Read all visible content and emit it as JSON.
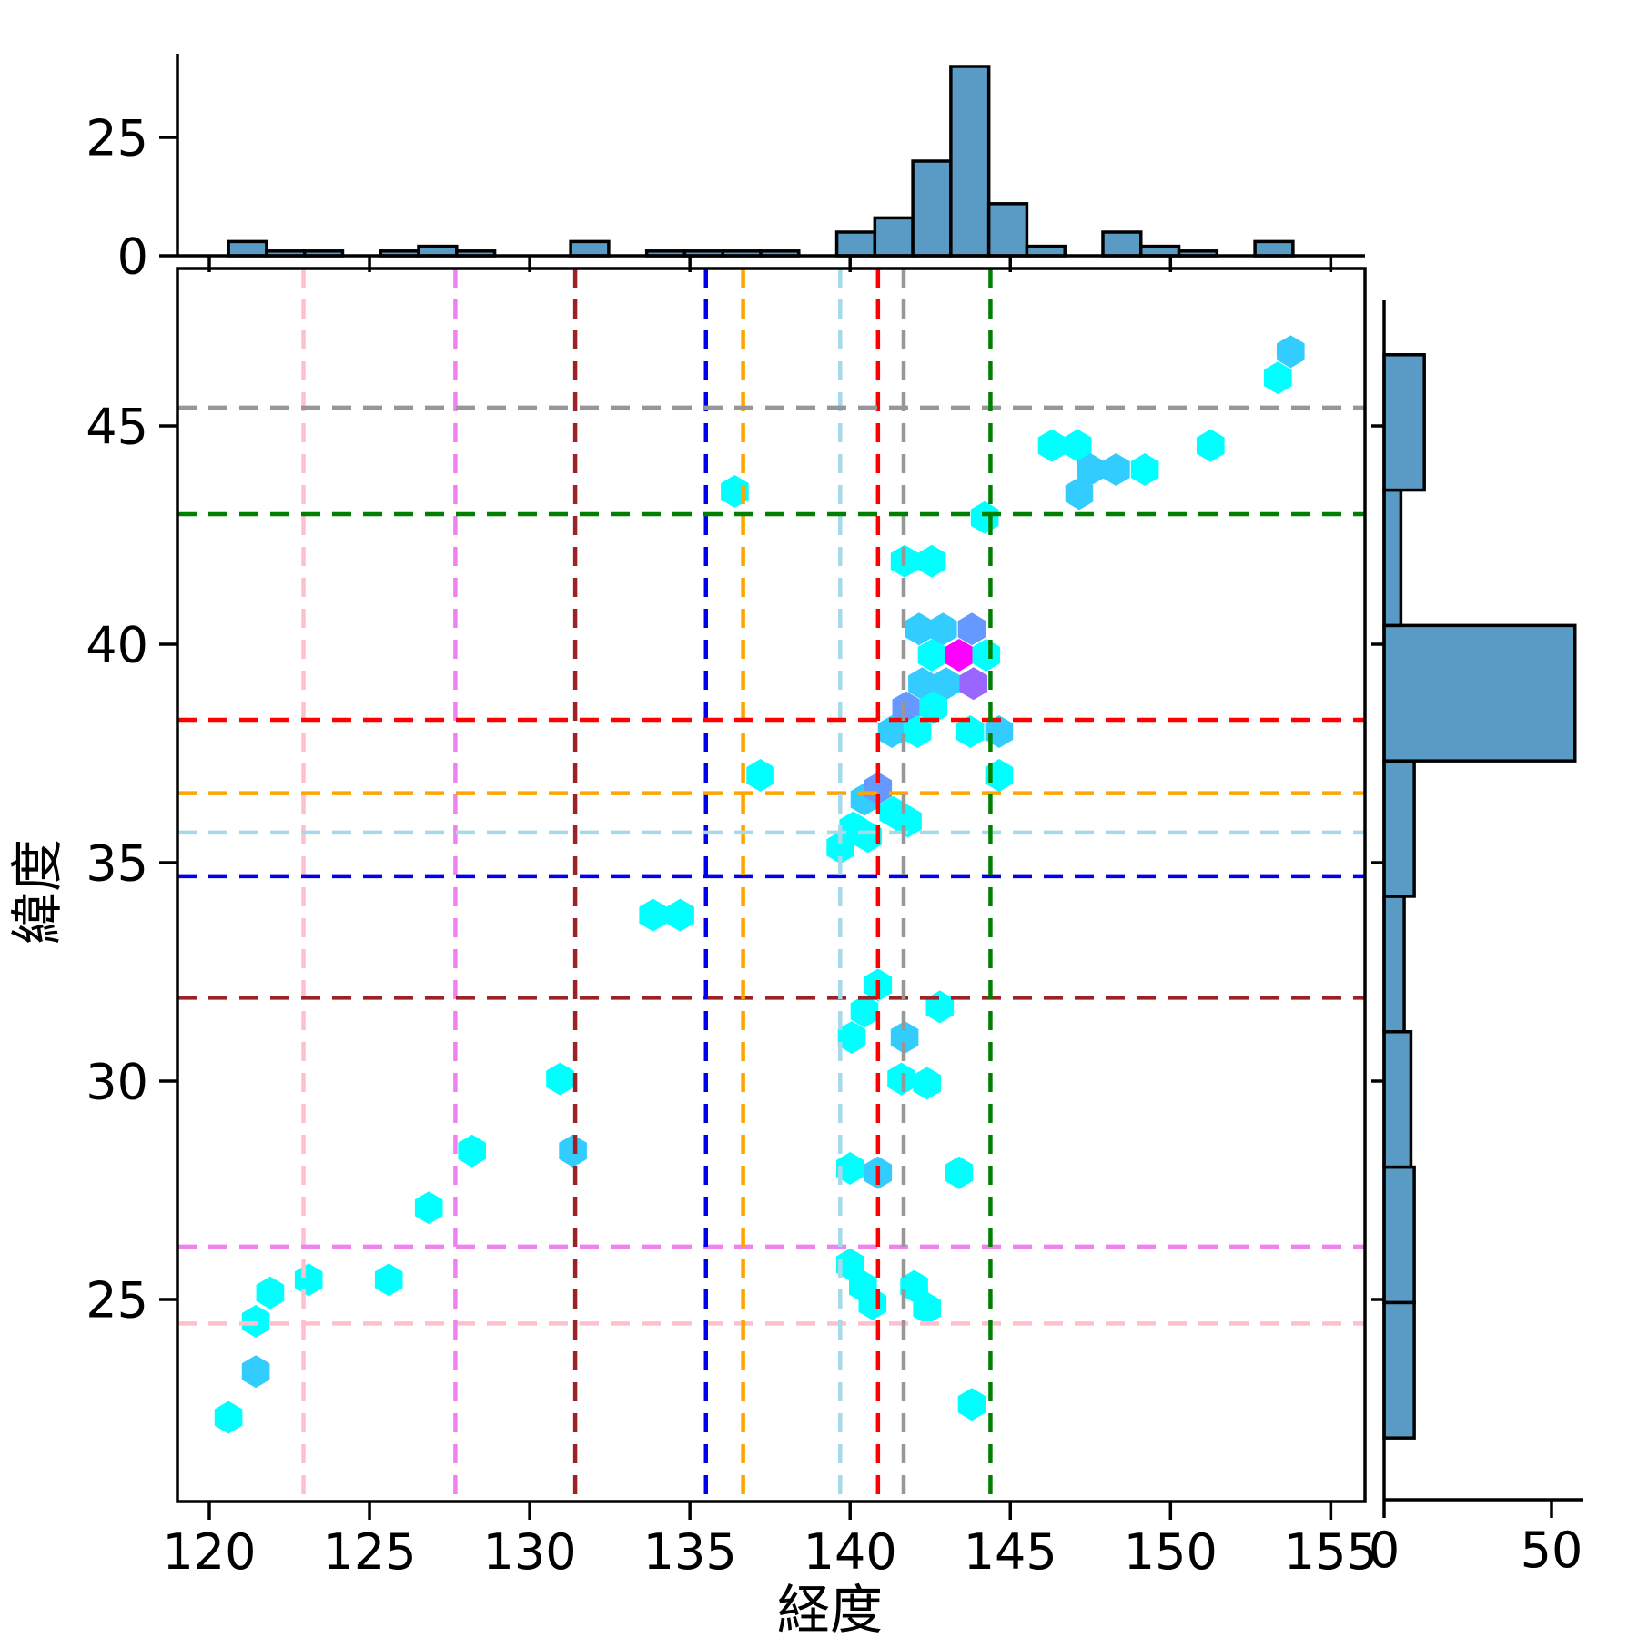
{
  "chart_data": {
    "type": "hexbin",
    "description": "Joint plot: hexbin scatter of longitude vs latitude with marginal histograms and dashed crosshair reference lines",
    "xlabel": "経度",
    "ylabel": "緯度",
    "main": {
      "xlim": [
        119.0,
        156.07
      ],
      "ylim": [
        20.4,
        48.6
      ],
      "xticks": [
        120,
        125,
        130,
        135,
        140,
        145,
        150,
        155
      ],
      "yticks": [
        25,
        30,
        35,
        40,
        45
      ],
      "grid": false,
      "hex_level_colors": {
        "1": "#00ffff",
        "2": "#33ccff",
        "3": "#6699ff",
        "4": "#9966ff",
        "5": "#cc33ff",
        "6": "#ff00ff"
      },
      "hexagons": [
        [
          120.6,
          22.3,
          1
        ],
        [
          121.45,
          23.35,
          2
        ],
        [
          121.45,
          24.5,
          1
        ],
        [
          121.9,
          25.15,
          1
        ],
        [
          123.1,
          25.45,
          1
        ],
        [
          125.6,
          25.45,
          1
        ],
        [
          126.85,
          27.1,
          1
        ],
        [
          128.2,
          28.4,
          1
        ],
        [
          131.35,
          28.4,
          2
        ],
        [
          130.95,
          30.05,
          1
        ],
        [
          133.85,
          33.8,
          1
        ],
        [
          134.7,
          33.8,
          1
        ],
        [
          136.4,
          43.5,
          1
        ],
        [
          137.2,
          37.0,
          1
        ],
        [
          139.7,
          35.35,
          1
        ],
        [
          140.1,
          35.8,
          1
        ],
        [
          140.55,
          35.6,
          1
        ],
        [
          140.45,
          36.45,
          2
        ],
        [
          140.87,
          36.7,
          3
        ],
        [
          141.35,
          36.15,
          1
        ],
        [
          141.8,
          35.95,
          1
        ],
        [
          140.87,
          32.2,
          1
        ],
        [
          140.45,
          31.6,
          1
        ],
        [
          140.05,
          31.0,
          1
        ],
        [
          141.7,
          31.0,
          2
        ],
        [
          142.8,
          31.7,
          1
        ],
        [
          141.6,
          30.05,
          1
        ],
        [
          142.4,
          29.95,
          1
        ],
        [
          140.0,
          28.0,
          1
        ],
        [
          140.87,
          27.9,
          2
        ],
        [
          143.4,
          27.9,
          1
        ],
        [
          140.0,
          25.8,
          1
        ],
        [
          140.4,
          25.3,
          1
        ],
        [
          140.7,
          24.9,
          1
        ],
        [
          142.0,
          25.3,
          1
        ],
        [
          142.4,
          24.8,
          1
        ],
        [
          143.8,
          22.6,
          1
        ],
        [
          142.15,
          40.35,
          2
        ],
        [
          142.9,
          40.35,
          2
        ],
        [
          143.8,
          40.35,
          3
        ],
        [
          142.55,
          39.75,
          1
        ],
        [
          143.4,
          39.75,
          6
        ],
        [
          144.25,
          39.75,
          1
        ],
        [
          142.25,
          39.1,
          2
        ],
        [
          143.0,
          39.1,
          2
        ],
        [
          143.85,
          39.1,
          4
        ],
        [
          141.75,
          38.55,
          3
        ],
        [
          142.6,
          38.55,
          1
        ],
        [
          141.3,
          38.0,
          2
        ],
        [
          142.1,
          38.0,
          1
        ],
        [
          143.75,
          38.0,
          1
        ],
        [
          144.65,
          38.0,
          2
        ],
        [
          144.65,
          37.0,
          1
        ],
        [
          141.7,
          41.9,
          1
        ],
        [
          142.55,
          41.9,
          1
        ],
        [
          144.2,
          42.9,
          1
        ],
        [
          146.3,
          44.55,
          1
        ],
        [
          147.1,
          44.55,
          1
        ],
        [
          151.25,
          44.55,
          1
        ],
        [
          147.5,
          44.0,
          2
        ],
        [
          148.3,
          44.0,
          2
        ],
        [
          149.2,
          44.0,
          1
        ],
        [
          147.15,
          43.45,
          2
        ],
        [
          153.35,
          46.1,
          1
        ],
        [
          153.75,
          46.7,
          2
        ]
      ],
      "reference_lines": [
        {
          "color": "#ffc0cb",
          "x": 122.94,
          "y": 24.45
        },
        {
          "color": "#ee82ee",
          "x": 127.68,
          "y": 26.21
        },
        {
          "color": "#9b2226",
          "x": 131.42,
          "y": 31.91
        },
        {
          "color": "#0000ee",
          "x": 135.5,
          "y": 34.69
        },
        {
          "color": "#ffa500",
          "x": 136.66,
          "y": 36.59
        },
        {
          "color": "#a6d9ea",
          "x": 139.69,
          "y": 35.69
        },
        {
          "color": "#ff0000",
          "x": 140.87,
          "y": 38.27
        },
        {
          "color": "#979797",
          "x": 141.67,
          "y": 45.42
        },
        {
          "color": "#008000",
          "x": 144.38,
          "y": 42.98
        }
      ]
    },
    "top_histogram": {
      "ylim": [
        0,
        42.7
      ],
      "yticks": [
        0,
        25
      ],
      "bin_start": 120.6,
      "bin_width": 1.1865,
      "counts": [
        3,
        1,
        1,
        0,
        1,
        2,
        1,
        0,
        0,
        3,
        0,
        1,
        1,
        1,
        1,
        0,
        5,
        8,
        20,
        40,
        11,
        2,
        0,
        5,
        2,
        1,
        0,
        3
      ],
      "bar_color": "#5a9bc6",
      "bar_edge_color": "#000000"
    },
    "right_histogram": {
      "xlim": [
        0,
        59
      ],
      "xticks": [
        0,
        50
      ],
      "bin_start": 21.83,
      "bin_width": 3.1,
      "counts_bottom_up": [
        9,
        9,
        8,
        6,
        9,
        57,
        5,
        12
      ],
      "bar_color": "#5a9bc6",
      "bar_edge_color": "#000000"
    }
  }
}
